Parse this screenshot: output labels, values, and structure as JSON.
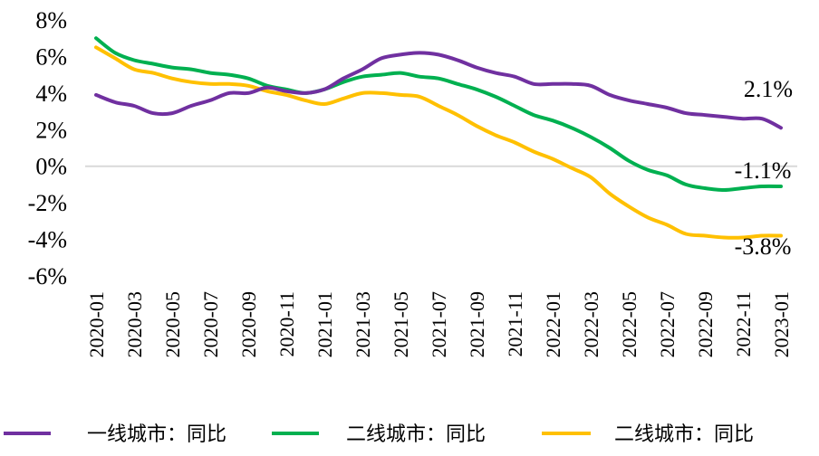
{
  "chart_data": {
    "type": "line",
    "title": "",
    "xlabel": "",
    "ylabel": "",
    "y_unit": "%",
    "ylim": [
      -6,
      8
    ],
    "y_ticks": [
      "8%",
      "6%",
      "4%",
      "2%",
      "0%",
      "-2%",
      "-4%",
      "-6%"
    ],
    "x_tick_labels": [
      "2020-01",
      "2020-03",
      "2020-05",
      "2020-07",
      "2020-09",
      "2020-11",
      "2021-01",
      "2021-03",
      "2021-05",
      "2021-07",
      "2021-09",
      "2021-11",
      "2022-01",
      "2022-03",
      "2022-05",
      "2022-07",
      "2022-09",
      "2022-11",
      "2023-01"
    ],
    "x": [
      "2020-01",
      "2020-02",
      "2020-03",
      "2020-04",
      "2020-05",
      "2020-06",
      "2020-07",
      "2020-08",
      "2020-09",
      "2020-10",
      "2020-11",
      "2020-12",
      "2021-01",
      "2021-02",
      "2021-03",
      "2021-04",
      "2021-05",
      "2021-06",
      "2021-07",
      "2021-08",
      "2021-09",
      "2021-10",
      "2021-11",
      "2021-12",
      "2022-01",
      "2022-02",
      "2022-03",
      "2022-04",
      "2022-05",
      "2022-06",
      "2022-07",
      "2022-08",
      "2022-09",
      "2022-10",
      "2022-11",
      "2022-12",
      "2023-01"
    ],
    "zero_line": true,
    "legend_position": "bottom",
    "series": [
      {
        "name": "一线城市：同比",
        "color": "#7030A0",
        "values": [
          3.9,
          3.5,
          3.3,
          2.9,
          2.9,
          3.3,
          3.6,
          4.0,
          4.0,
          4.3,
          4.1,
          4.0,
          4.2,
          4.8,
          5.3,
          5.9,
          6.1,
          6.2,
          6.1,
          5.8,
          5.4,
          5.1,
          4.9,
          4.5,
          4.5,
          4.5,
          4.4,
          3.9,
          3.6,
          3.4,
          3.2,
          2.9,
          2.8,
          2.7,
          2.6,
          2.6,
          2.1
        ],
        "end_label": "2.1%"
      },
      {
        "name": "二线城市：同比",
        "color": "#00B050",
        "values": [
          7.0,
          6.2,
          5.8,
          5.6,
          5.4,
          5.3,
          5.1,
          5.0,
          4.8,
          4.4,
          4.2,
          4.0,
          4.2,
          4.6,
          4.9,
          5.0,
          5.1,
          4.9,
          4.8,
          4.5,
          4.2,
          3.8,
          3.3,
          2.8,
          2.5,
          2.1,
          1.6,
          1.0,
          0.3,
          -0.2,
          -0.5,
          -1.0,
          -1.2,
          -1.3,
          -1.2,
          -1.1,
          -1.1
        ],
        "end_label": "-1.1%"
      },
      {
        "name": "二线城市：同比",
        "color": "#FFC000",
        "values": [
          6.5,
          5.9,
          5.3,
          5.1,
          4.8,
          4.6,
          4.5,
          4.5,
          4.4,
          4.1,
          3.9,
          3.6,
          3.4,
          3.7,
          4.0,
          4.0,
          3.9,
          3.8,
          3.3,
          2.8,
          2.2,
          1.7,
          1.3,
          0.8,
          0.4,
          -0.1,
          -0.6,
          -1.5,
          -2.2,
          -2.8,
          -3.2,
          -3.7,
          -3.8,
          -3.9,
          -3.9,
          -3.8,
          -3.8
        ],
        "end_label": "-3.8%"
      }
    ]
  }
}
